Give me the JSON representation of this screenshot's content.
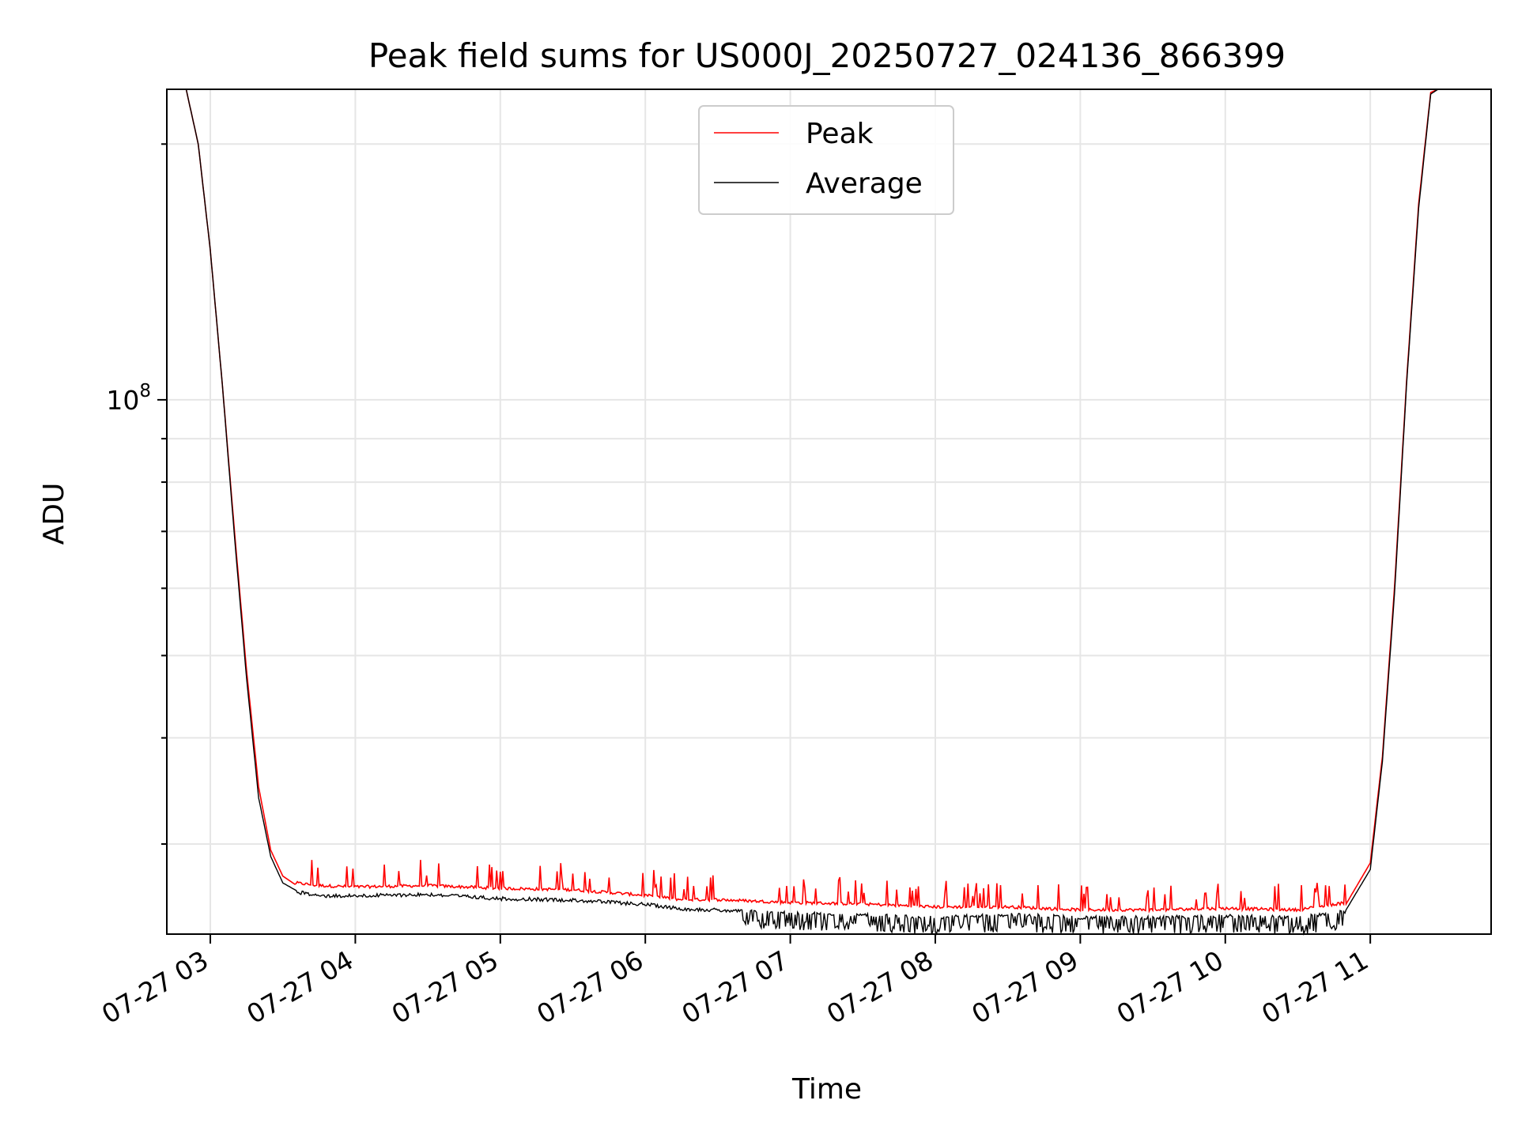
{
  "chart_data": {
    "type": "line",
    "title": "Peak field sums for US000J_20250727_024136_866399",
    "xlabel": "Time",
    "ylabel": "ADU",
    "yscale": "log",
    "grid": true,
    "legend_position": "top-center",
    "x_tick_labels": [
      "07-27 03",
      "07-27 04",
      "07-27 05",
      "07-27 06",
      "07-27 07",
      "07-27 08",
      "07-27 09",
      "07-27 10",
      "07-27 11"
    ],
    "y_tick_labels": [
      {
        "value": 100000000,
        "label": "10",
        "exponent": "8"
      }
    ],
    "xlim": [
      "2025-07-27 02:42",
      "2025-07-27 11:50"
    ],
    "ylim": [
      23500000,
      232000000
    ],
    "series": [
      {
        "name": "Peak",
        "color": "#ff0000",
        "points": [
          [
            "2025-07-27 02:42",
            232000000
          ],
          [
            "2025-07-27 02:50",
            232000000
          ],
          [
            "2025-07-27 02:55",
            200000000
          ],
          [
            "2025-07-27 03:00",
            150000000
          ],
          [
            "2025-07-27 03:05",
            104000000
          ],
          [
            "2025-07-27 03:10",
            70000000
          ],
          [
            "2025-07-27 03:15",
            48000000
          ],
          [
            "2025-07-27 03:20",
            35000000
          ],
          [
            "2025-07-27 03:25",
            29500000
          ],
          [
            "2025-07-27 03:30",
            27500000
          ],
          [
            "2025-07-27 03:35",
            26900000
          ],
          [
            "2025-07-27 03:45",
            26700000
          ],
          [
            "2025-07-27 04:00",
            26600000
          ],
          [
            "2025-07-27 04:30",
            26700000
          ],
          [
            "2025-07-27 05:00",
            26500000
          ],
          [
            "2025-07-27 05:30",
            26400000
          ],
          [
            "2025-07-27 06:00",
            26000000
          ],
          [
            "2025-07-27 06:15",
            25700000
          ],
          [
            "2025-07-27 06:30",
            25700000
          ],
          [
            "2025-07-27 07:00",
            25500000
          ],
          [
            "2025-07-27 07:30",
            25400000
          ],
          [
            "2025-07-27 08:00",
            25200000
          ],
          [
            "2025-07-27 08:30",
            25200000
          ],
          [
            "2025-07-27 09:00",
            25000000
          ],
          [
            "2025-07-27 09:30",
            25000000
          ],
          [
            "2025-07-27 10:00",
            25100000
          ],
          [
            "2025-07-27 10:30",
            25000000
          ],
          [
            "2025-07-27 10:50",
            25500000
          ],
          [
            "2025-07-27 11:00",
            28500000
          ],
          [
            "2025-07-27 11:05",
            38000000
          ],
          [
            "2025-07-27 11:10",
            60000000
          ],
          [
            "2025-07-27 11:15",
            105000000
          ],
          [
            "2025-07-27 11:20",
            170000000
          ],
          [
            "2025-07-27 11:25",
            230000000
          ],
          [
            "2025-07-27 11:28",
            232000000
          ],
          [
            "2025-07-27 11:50",
            232000000
          ]
        ]
      },
      {
        "name": "Average",
        "color": "#000000",
        "points": [
          [
            "2025-07-27 02:42",
            232000000
          ],
          [
            "2025-07-27 02:50",
            232000000
          ],
          [
            "2025-07-27 02:55",
            200000000
          ],
          [
            "2025-07-27 03:00",
            150000000
          ],
          [
            "2025-07-27 03:05",
            104000000
          ],
          [
            "2025-07-27 03:10",
            69000000
          ],
          [
            "2025-07-27 03:15",
            47000000
          ],
          [
            "2025-07-27 03:20",
            34000000
          ],
          [
            "2025-07-27 03:25",
            29000000
          ],
          [
            "2025-07-27 03:30",
            27000000
          ],
          [
            "2025-07-27 03:35",
            26500000
          ],
          [
            "2025-07-27 03:45",
            26200000
          ],
          [
            "2025-07-27 04:00",
            26200000
          ],
          [
            "2025-07-27 04:30",
            26300000
          ],
          [
            "2025-07-27 05:00",
            26000000
          ],
          [
            "2025-07-27 05:30",
            25900000
          ],
          [
            "2025-07-27 06:00",
            25600000
          ],
          [
            "2025-07-27 06:15",
            25300000
          ],
          [
            "2025-07-27 06:30",
            25200000
          ],
          [
            "2025-07-27 07:00",
            25000000
          ],
          [
            "2025-07-27 07:30",
            24900000
          ],
          [
            "2025-07-27 08:00",
            24700000
          ],
          [
            "2025-07-27 08:30",
            24900000
          ],
          [
            "2025-07-27 09:00",
            24700000
          ],
          [
            "2025-07-27 09:30",
            24700000
          ],
          [
            "2025-07-27 10:00",
            24800000
          ],
          [
            "2025-07-27 10:30",
            24700000
          ],
          [
            "2025-07-27 10:50",
            25100000
          ],
          [
            "2025-07-27 11:00",
            28000000
          ],
          [
            "2025-07-27 11:05",
            37500000
          ],
          [
            "2025-07-27 11:10",
            59000000
          ],
          [
            "2025-07-27 11:15",
            104000000
          ],
          [
            "2025-07-27 11:20",
            168000000
          ],
          [
            "2025-07-27 11:25",
            229000000
          ],
          [
            "2025-07-27 11:28",
            232000000
          ],
          [
            "2025-07-27 11:50",
            232000000
          ]
        ]
      }
    ]
  }
}
